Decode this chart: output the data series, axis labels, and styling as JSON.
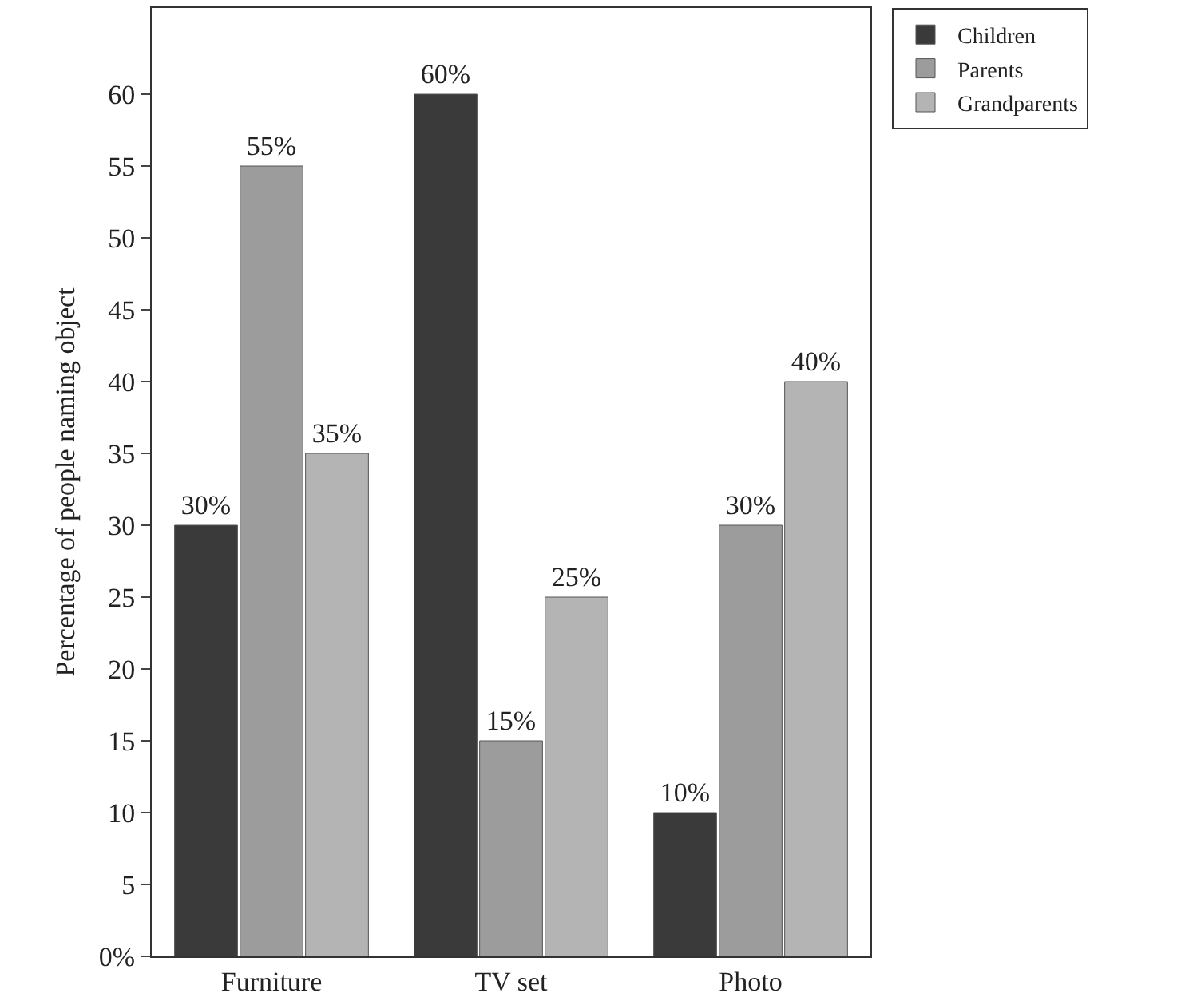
{
  "chart_data": {
    "type": "bar",
    "ylabel": "Percentage of people naming object",
    "categories": [
      "Furniture",
      "TV set",
      "Photo"
    ],
    "series": [
      {
        "name": "Children",
        "color": "#3a3a3a",
        "values": [
          30,
          60,
          10
        ],
        "value_labels": [
          "30%",
          "60%",
          "10%"
        ]
      },
      {
        "name": "Parents",
        "color": "#9c9c9c",
        "values": [
          55,
          15,
          30
        ],
        "value_labels": [
          "55%",
          "15%",
          "30%"
        ]
      },
      {
        "name": "Grandparents",
        "color": "#b4b4b4",
        "values": [
          35,
          25,
          40
        ],
        "value_labels": [
          "35%",
          "25%",
          "40%"
        ]
      }
    ],
    "ylim": [
      0,
      66
    ],
    "yticks": [
      {
        "value": 0,
        "label": "0%"
      },
      5,
      10,
      15,
      20,
      25,
      30,
      35,
      40,
      45,
      50,
      55,
      60
    ],
    "grid": false,
    "legend": "top right"
  }
}
